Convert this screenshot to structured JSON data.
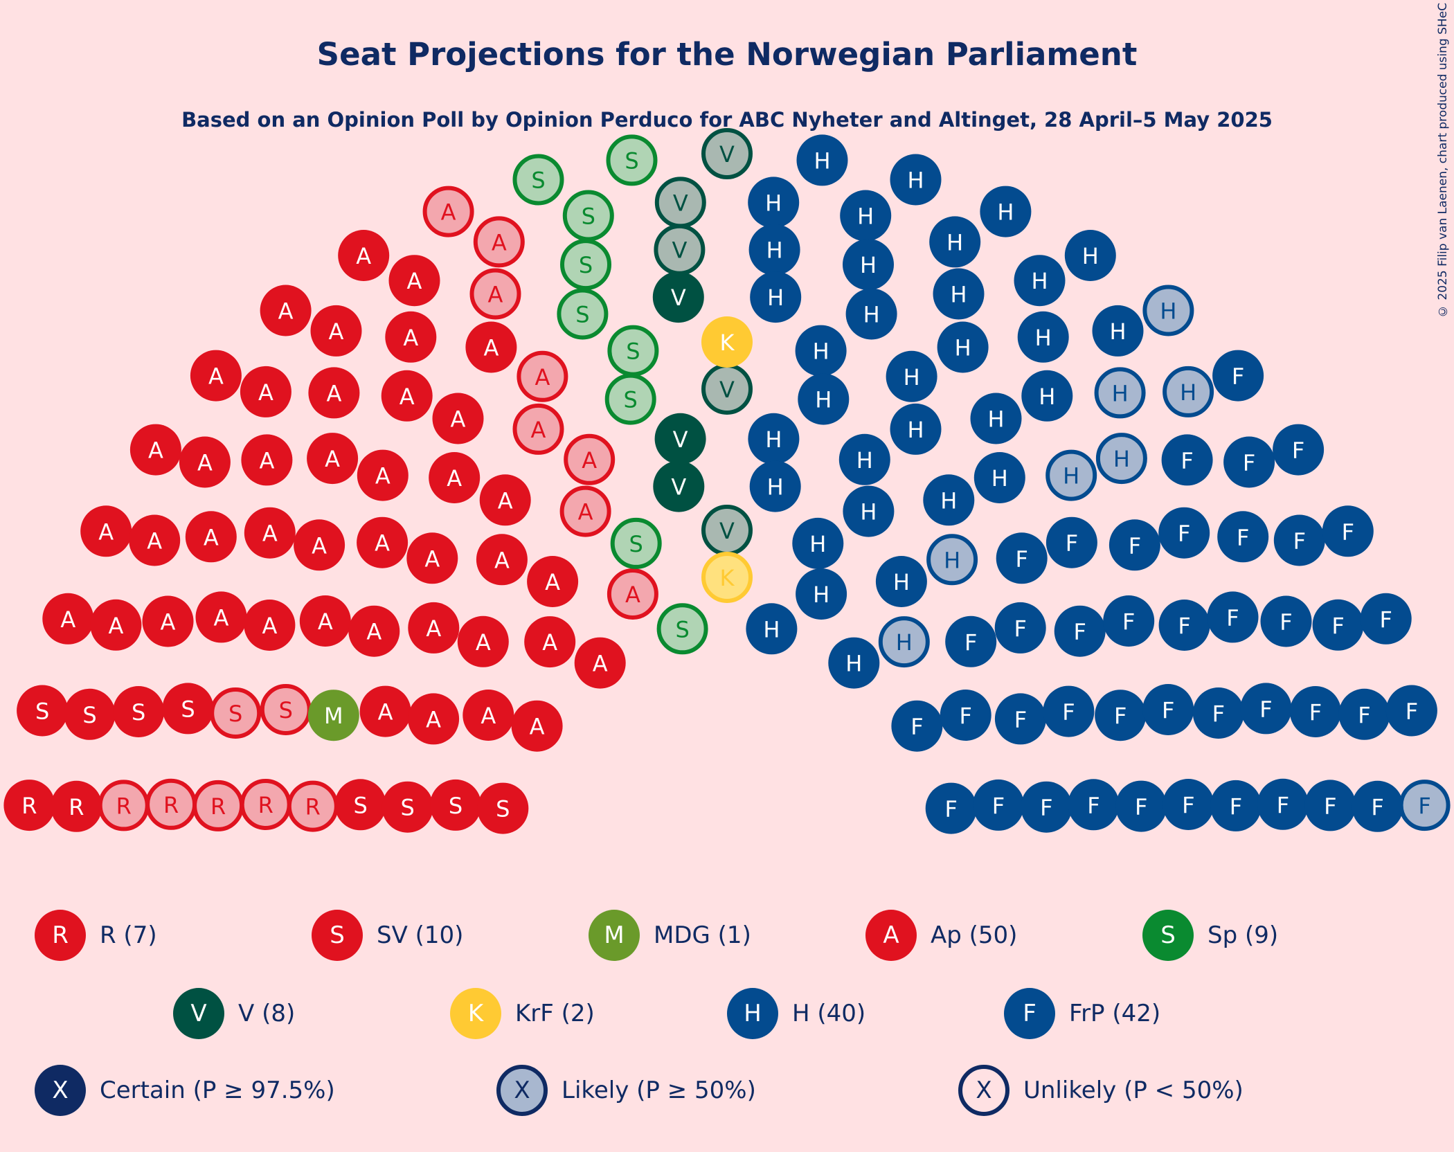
{
  "title": "Seat Projections for the Norwegian Parliament",
  "subtitle": "Based on an Opinion Poll by Opinion Perduco for ABC Nyheter and Altinget, 28 April–5 May 2025",
  "copyright": "© 2025 Filip van Laenen, chart produced using SHeC",
  "chart_data": {
    "type": "parliament",
    "total_seats": 169,
    "parties": [
      {
        "letter": "R",
        "name": "R",
        "label": "R (7)",
        "seats": 7,
        "color": "#E0121F",
        "light": "#F3A7AE",
        "certain": 2,
        "likely": 5
      },
      {
        "letter": "S",
        "name": "SV",
        "label": "SV (10)",
        "seats": 10,
        "color": "#E0121F",
        "light": "#F3A7AE",
        "certain": 8,
        "likely": 2
      },
      {
        "letter": "M",
        "name": "MDG",
        "label": "MDG (1)",
        "seats": 1,
        "color": "#6A9A2A",
        "light": "#B5CC95",
        "certain": 1,
        "likely": 0
      },
      {
        "letter": "A",
        "name": "Ap",
        "label": "Ap (50)",
        "seats": 50,
        "color": "#E0121F",
        "light": "#F3A7AE",
        "certain": 42,
        "likely": 8
      },
      {
        "letter": "S",
        "name": "Sp",
        "label": "Sp (9)",
        "seats": 9,
        "color": "#0A8A30",
        "light": "#B0D4B4",
        "certain": 0,
        "likely": 9
      },
      {
        "letter": "V",
        "name": "V",
        "label": "V (8)",
        "seats": 8,
        "color": "#005142",
        "light": "#A9B8B1",
        "certain": 3,
        "likely": 5
      },
      {
        "letter": "K",
        "name": "KrF",
        "label": "KrF (2)",
        "seats": 2,
        "color": "#FFCA33",
        "light": "#FFE17E",
        "certain": 1,
        "likely": 1
      },
      {
        "letter": "H",
        "name": "H",
        "label": "H (40)",
        "seats": 40,
        "color": "#034B8F",
        "light": "#A8B7CF",
        "certain": 33,
        "likely": 7
      },
      {
        "letter": "F",
        "name": "FrP",
        "label": "FrP (42)",
        "seats": 42,
        "color": "#034B8F",
        "light": "#A8B7CF",
        "certain": 41,
        "likely": 1
      }
    ],
    "status_legend": [
      {
        "letter": "X",
        "label": "Certain (P ≥ 97.5%)",
        "kind": "certain"
      },
      {
        "letter": "X",
        "label": "Likely (P ≥ 50%)",
        "kind": "likely"
      },
      {
        "letter": "X",
        "label": "Unlikely (P < 50%)",
        "kind": "unlikely"
      }
    ],
    "status_colors": {
      "dark": "#0F2A63",
      "light": "#A8B7CF"
    }
  }
}
